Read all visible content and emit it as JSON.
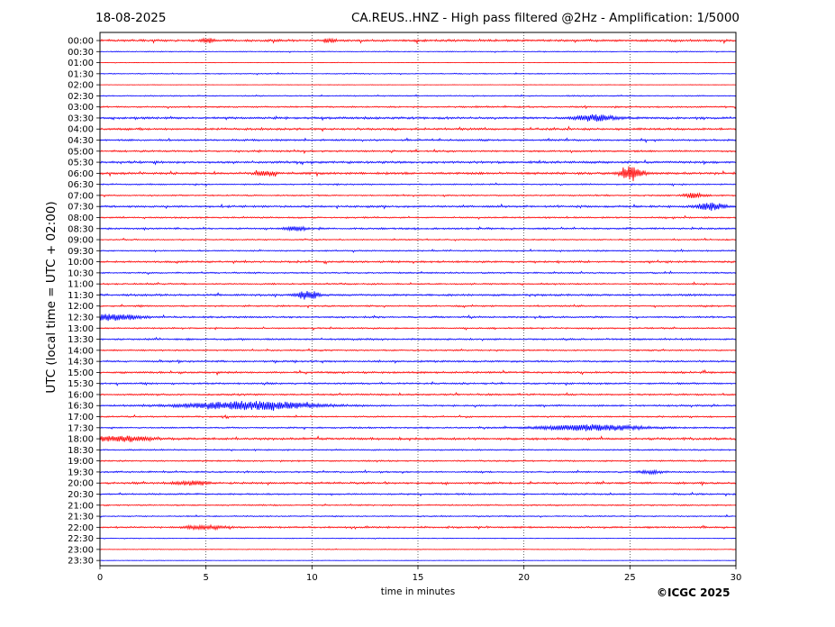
{
  "header": {
    "date": "18-08-2025",
    "title": "CA.REUS..HNZ - High pass filtered @2Hz - Amplification: 1/5000"
  },
  "footer": {
    "credit": "©ICGC 2025"
  },
  "chart_data": {
    "type": "line",
    "title": "CA.REUS..HNZ - High pass filtered @2Hz - Amplification: 1/5000",
    "xlabel": "time in minutes",
    "ylabel": "UTC (local time = UTC + 02:00)",
    "xlim": [
      0,
      30
    ],
    "x_ticks": [
      "0",
      "5",
      "10",
      "15",
      "20",
      "25",
      "30"
    ],
    "y_ticks": [
      "00:00",
      "00:30",
      "01:00",
      "01:30",
      "02:00",
      "02:30",
      "03:00",
      "03:30",
      "04:00",
      "04:30",
      "05:00",
      "05:30",
      "06:00",
      "06:30",
      "07:00",
      "07:30",
      "08:00",
      "08:30",
      "09:00",
      "09:30",
      "10:00",
      "10:30",
      "11:00",
      "11:30",
      "12:00",
      "12:30",
      "13:00",
      "13:30",
      "14:00",
      "14:30",
      "15:00",
      "15:30",
      "16:00",
      "16:30",
      "17:00",
      "17:30",
      "18:00",
      "18:30",
      "19:00",
      "19:30",
      "20:00",
      "20:30",
      "21:00",
      "21:30",
      "22:00",
      "22:30",
      "23:00",
      "23:30"
    ],
    "grid": "vertical dotted",
    "series_colors": [
      "#ff0000",
      "#0000ff"
    ],
    "trace_amplitude": [
      0.9,
      0.35,
      0.15,
      0.4,
      0.15,
      0.45,
      0.6,
      0.9,
      0.85,
      0.75,
      0.7,
      0.9,
      0.95,
      0.55,
      0.55,
      0.8,
      0.6,
      0.7,
      0.5,
      0.55,
      0.75,
      0.6,
      0.6,
      0.8,
      0.65,
      0.7,
      0.6,
      0.7,
      0.6,
      0.75,
      0.8,
      0.7,
      0.7,
      0.7,
      0.6,
      0.6,
      0.9,
      0.55,
      0.6,
      0.6,
      0.8,
      0.65,
      0.55,
      0.5,
      0.7,
      0.3,
      0.3,
      0.15
    ],
    "events": [
      {
        "row": 0,
        "x": 5.1,
        "amp": 2.5,
        "width": 0.3
      },
      {
        "row": 0,
        "x": 10.8,
        "amp": 2.0,
        "width": 0.25
      },
      {
        "row": 7,
        "x": 23.4,
        "amp": 3.0,
        "width": 1.0
      },
      {
        "row": 12,
        "x": 25.1,
        "amp": 8.0,
        "width": 0.5
      },
      {
        "row": 12,
        "x": 7.8,
        "amp": 2.5,
        "width": 0.4
      },
      {
        "row": 14,
        "x": 28.0,
        "amp": 2.5,
        "width": 0.5
      },
      {
        "row": 15,
        "x": 28.8,
        "amp": 4.5,
        "width": 0.6
      },
      {
        "row": 17,
        "x": 9.2,
        "amp": 2.8,
        "width": 0.5
      },
      {
        "row": 23,
        "x": 9.8,
        "amp": 5.0,
        "width": 0.5
      },
      {
        "row": 25,
        "x": 0.7,
        "amp": 3.5,
        "width": 1.2
      },
      {
        "row": 33,
        "x": 7.2,
        "amp": 4.5,
        "width": 3.0
      },
      {
        "row": 35,
        "x": 23.2,
        "amp": 3.2,
        "width": 2.5
      },
      {
        "row": 36,
        "x": 1.0,
        "amp": 2.8,
        "width": 1.5
      },
      {
        "row": 39,
        "x": 26.0,
        "amp": 2.0,
        "width": 0.5
      },
      {
        "row": 40,
        "x": 4.3,
        "amp": 2.0,
        "width": 0.8
      },
      {
        "row": 44,
        "x": 5.0,
        "amp": 2.0,
        "width": 1.0
      }
    ]
  }
}
